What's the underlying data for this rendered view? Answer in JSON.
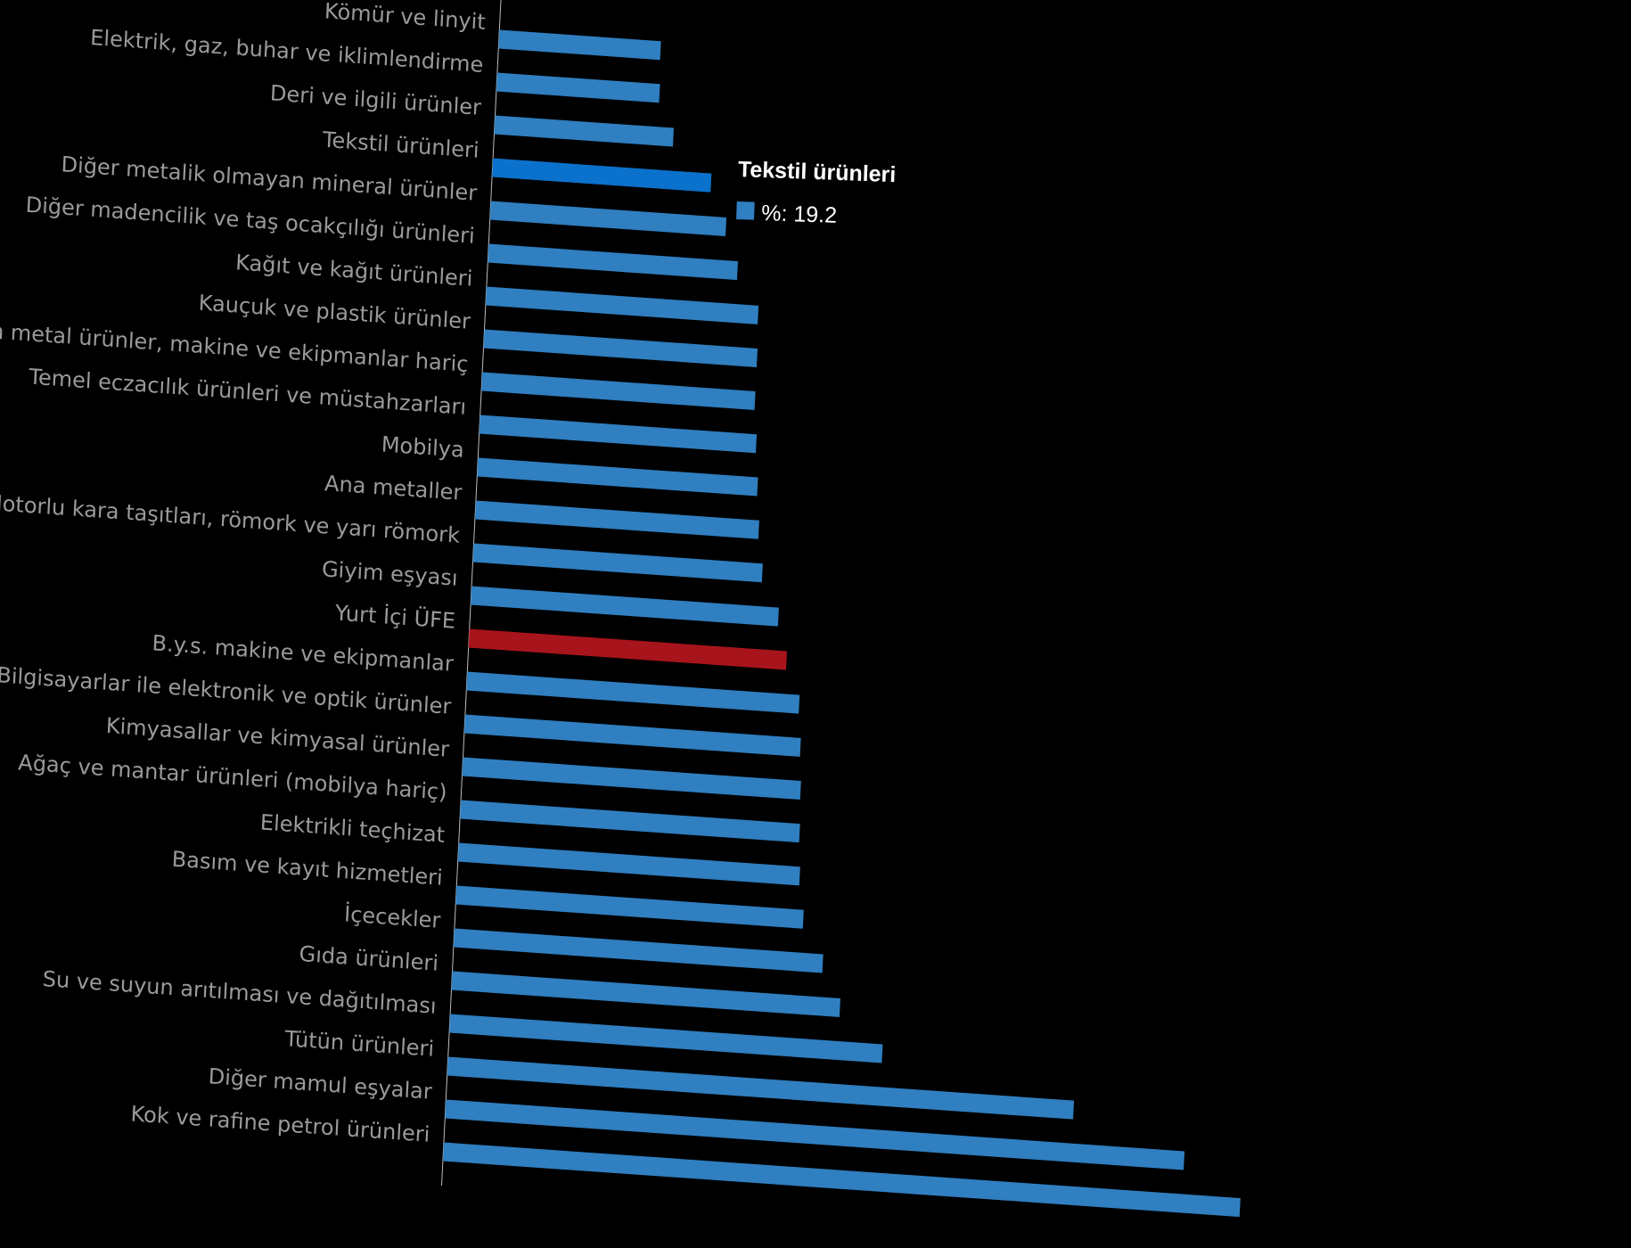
{
  "chart_data": {
    "type": "bar",
    "orientation": "horizontal",
    "title": "",
    "xlabel": "",
    "ylabel": "",
    "unit": "%",
    "categories": [
      "Kömür ve linyit",
      "Elektrik, gaz, buhar ve iklimlendirme",
      "Deri ve ilgili ürünler",
      "Tekstil ürünleri",
      "Diğer metalik olmayan mineral ürünler",
      "Diğer madencilik ve taş ocakçılığı ürünleri",
      "Kağıt ve kağıt ürünleri",
      "Kauçuk ve plastik ürünler",
      "Fabrikasyon metal ürünler, makine ve ekipmanlar hariç",
      "Temel eczacılık ürünleri ve müstahzarları",
      "Mobilya",
      "Ana metaller",
      "Motorlu kara taşıtları, römork ve yarı römork",
      "Giyim eşyası",
      "Yurt İçi ÜFE",
      "B.y.s. makine ve ekipmanlar",
      "Bilgisayarlar ile elektronik ve optik ürünler",
      "Kimyasallar ve kimyasal ürünler",
      "Ağaç ve mantar ürünleri (mobilya hariç)",
      "Elektrikli teçhizat",
      "Basım ve kayıt hizmetleri",
      "İçecekler",
      "Gıda ürünleri",
      "Su ve suyun arıtılması ve dağıtılması",
      "Tütün ürünleri",
      "Diğer mamul eşyalar",
      "Kok ve rafine petrol ürünleri"
    ],
    "values": [
      14.2,
      14.3,
      15.7,
      19.2,
      20.7,
      21.9,
      23.9,
      24.0,
      24.0,
      24.3,
      24.6,
      24.9,
      25.4,
      27.0,
      27.9,
      29.2,
      29.5,
      29.7,
      29.8,
      30.0,
      30.5,
      32.4,
      34.1,
      38.0,
      55.0,
      64.9,
      70.0
    ],
    "highlight_index": 14,
    "hover_index": 3,
    "colors": {
      "default": "#2f7fc1",
      "highlight": "#a8141b",
      "hover": "#0a72cc",
      "label": "#9a9a9a"
    },
    "grid": false,
    "legend": "none"
  },
  "tooltip": {
    "title": "Tekstil ürünleri",
    "value_text": "%: 19.2",
    "swatch_color": "#2f7fc1"
  }
}
